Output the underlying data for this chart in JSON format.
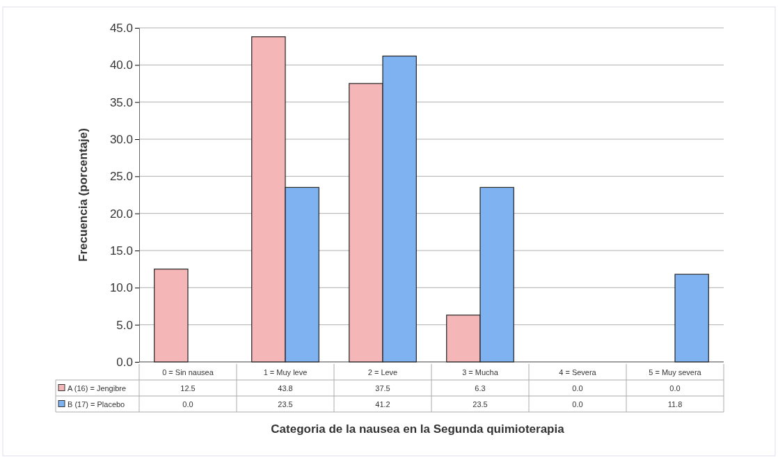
{
  "chart_data": {
    "type": "bar",
    "xlabel": "Categoria de la nausea en la Segunda quimioterapia",
    "ylabel": "Frecuencia (porcentaje)",
    "categories": [
      "0 = Sin nausea",
      "1 = Muy leve",
      "2 = Leve",
      "3 = Mucha",
      "4 = Severa",
      "5 = Muy severa"
    ],
    "series": [
      {
        "name": "A (16) = Jengibre",
        "color": "#f4b6b6",
        "values": [
          12.5,
          43.8,
          37.5,
          6.3,
          0.0,
          0.0
        ],
        "value_labels": [
          "12.5",
          "43.8",
          "37.5",
          "6.3",
          "0.0",
          "0.0"
        ]
      },
      {
        "name": "B (17) = Placebo",
        "color": "#7fb2f0",
        "values": [
          0.0,
          23.5,
          41.2,
          23.5,
          0.0,
          11.8
        ],
        "value_labels": [
          "0.0",
          "23.5",
          "41.2",
          "23.5",
          "0.0",
          "11.8"
        ]
      }
    ],
    "ylim": [
      0,
      45
    ],
    "yticks": [
      {
        "value": 0,
        "label": "0.0"
      },
      {
        "value": 5,
        "label": "5.0"
      },
      {
        "value": 10,
        "label": "10.0"
      },
      {
        "value": 15,
        "label": "15.0"
      },
      {
        "value": 20,
        "label": "20.0"
      },
      {
        "value": 25,
        "label": "25.0"
      },
      {
        "value": 30,
        "label": "30.0"
      },
      {
        "value": 35,
        "label": "35.0"
      },
      {
        "value": 40,
        "label": "40.0"
      },
      {
        "value": 45,
        "label": "45.0"
      }
    ],
    "grid": "y",
    "legend": "bottom"
  }
}
